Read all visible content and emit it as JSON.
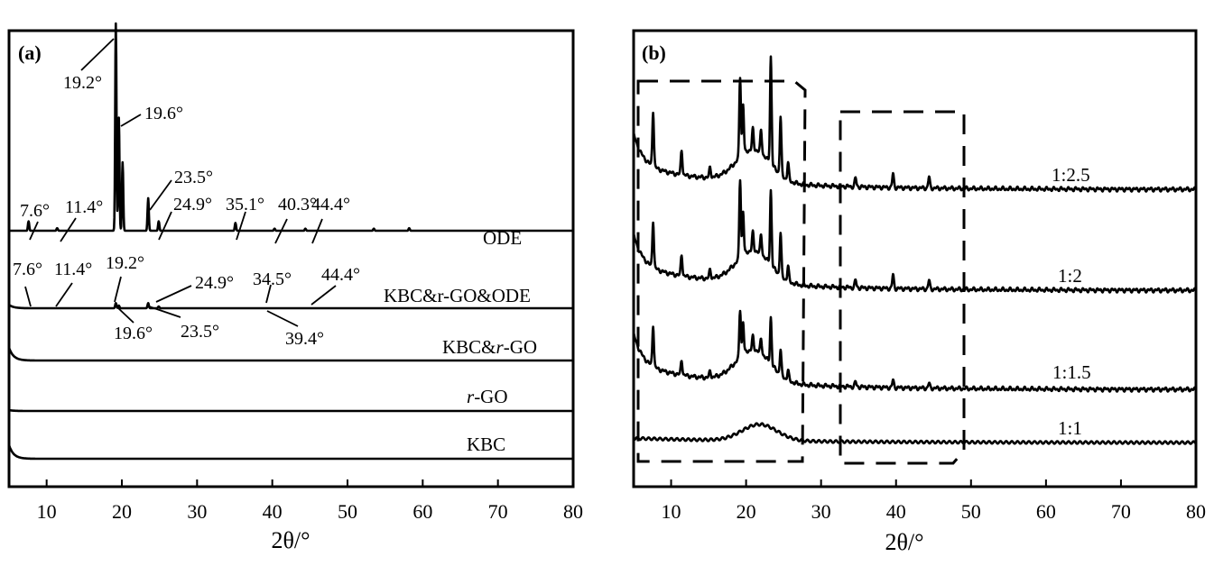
{
  "chart_data": [
    {
      "type": "line",
      "panel_label": "(a)",
      "xlabel": "2θ/°",
      "xlim": [
        5,
        80
      ],
      "x_ticks": [
        "10",
        "20",
        "30",
        "40",
        "50",
        "60",
        "70",
        "80"
      ],
      "y_ticks": false,
      "legend": "none",
      "series": [
        {
          "name": "ODE",
          "baseline": 1.0,
          "start_decay": 0,
          "peaks": [
            {
              "x": 7.6,
              "h": 0.55
            },
            {
              "x": 11.4,
              "h": 0.15
            },
            {
              "x": 19.2,
              "h": 12.1
            },
            {
              "x": 19.6,
              "h": 6.6
            },
            {
              "x": 20.1,
              "h": 4.0
            },
            {
              "x": 23.5,
              "h": 1.9
            },
            {
              "x": 24.9,
              "h": 0.55
            },
            {
              "x": 35.1,
              "h": 0.45
            },
            {
              "x": 40.3,
              "h": 0.12
            },
            {
              "x": 44.4,
              "h": 0.12
            },
            {
              "x": 53.5,
              "h": 0.12
            },
            {
              "x": 58.2,
              "h": 0.15
            }
          ]
        },
        {
          "name": "KBC&r-GO&ODE",
          "baseline": 0.0,
          "start_decay": 0.2,
          "peaks": [
            {
              "x": 19.2,
              "h": 0.3
            },
            {
              "x": 19.6,
              "h": 0.15
            },
            {
              "x": 23.5,
              "h": 0.3
            },
            {
              "x": 24.9,
              "h": 0.1
            }
          ]
        },
        {
          "name": "KBC&r-GO",
          "baseline": 0.0,
          "start_decay": 0.75,
          "peaks": []
        },
        {
          "name": "r-GO",
          "baseline": 0.0,
          "start_decay": 0.05,
          "peaks": []
        },
        {
          "name": "KBC",
          "baseline": 0.0,
          "start_decay": 0.8,
          "peaks": []
        }
      ],
      "series_labels": [
        "ODE",
        "KBC&r-GO&ODE",
        "KBC&",
        "r",
        "-GO",
        "r",
        "-GO",
        "KBC"
      ],
      "annotations": [
        "19.2°",
        "19.6°",
        "23.5°",
        "24.9°",
        "35.1°",
        "40.3°",
        "44.4°",
        "7.6°",
        "11.4°",
        "7.6°",
        "11.4°",
        "19.2°",
        "24.9°",
        "34.5°",
        "44.4°",
        "19.6°",
        "23.5°",
        "39.4°"
      ]
    },
    {
      "type": "line",
      "panel_label": "(b)",
      "xlabel": "2θ/°",
      "xlim": [
        5,
        80
      ],
      "x_ticks": [
        "10",
        "20",
        "30",
        "40",
        "50",
        "60",
        "70",
        "80"
      ],
      "y_ticks": false,
      "legend": "none",
      "series": [
        {
          "name": "1:2.5",
          "peaks": [
            {
              "x": 7.6,
              "h": 4.4
            },
            {
              "x": 11.4,
              "h": 2.0
            },
            {
              "x": 15.2,
              "h": 0.8
            },
            {
              "x": 19.2,
              "h": 6.4
            },
            {
              "x": 19.6,
              "h": 4.0
            },
            {
              "x": 20.9,
              "h": 1.6
            },
            {
              "x": 22.0,
              "h": 1.8
            },
            {
              "x": 23.3,
              "h": 8.5
            },
            {
              "x": 24.6,
              "h": 4.6
            },
            {
              "x": 25.6,
              "h": 1.4
            },
            {
              "x": 34.6,
              "h": 0.7
            },
            {
              "x": 39.6,
              "h": 1.1
            },
            {
              "x": 44.4,
              "h": 0.9
            }
          ]
        },
        {
          "name": "1:2",
          "peaks": [
            {
              "x": 7.6,
              "h": 3.7
            },
            {
              "x": 11.4,
              "h": 1.7
            },
            {
              "x": 15.2,
              "h": 0.7
            },
            {
              "x": 19.2,
              "h": 6.3
            },
            {
              "x": 19.6,
              "h": 3.5
            },
            {
              "x": 20.9,
              "h": 1.4
            },
            {
              "x": 22.0,
              "h": 1.5
            },
            {
              "x": 23.3,
              "h": 5.9
            },
            {
              "x": 24.6,
              "h": 3.4
            },
            {
              "x": 25.6,
              "h": 1.2
            },
            {
              "x": 34.6,
              "h": 0.6
            },
            {
              "x": 39.6,
              "h": 1.1
            },
            {
              "x": 44.4,
              "h": 0.7
            }
          ]
        },
        {
          "name": "1:1.5",
          "peaks": [
            {
              "x": 7.6,
              "h": 3.3
            },
            {
              "x": 11.4,
              "h": 1.2
            },
            {
              "x": 15.2,
              "h": 0.5
            },
            {
              "x": 19.2,
              "h": 3.8
            },
            {
              "x": 19.6,
              "h": 2.6
            },
            {
              "x": 20.9,
              "h": 1.0
            },
            {
              "x": 22.0,
              "h": 1.1
            },
            {
              "x": 23.3,
              "h": 3.7
            },
            {
              "x": 24.6,
              "h": 2.0
            },
            {
              "x": 25.6,
              "h": 0.8
            },
            {
              "x": 34.6,
              "h": 0.4
            },
            {
              "x": 39.6,
              "h": 0.6
            },
            {
              "x": 44.4,
              "h": 0.4
            }
          ]
        },
        {
          "name": "1:1",
          "peaks": []
        }
      ],
      "series_labels": [
        "1:2.5",
        "1:2",
        "1:1.5",
        "1:1"
      ]
    }
  ]
}
